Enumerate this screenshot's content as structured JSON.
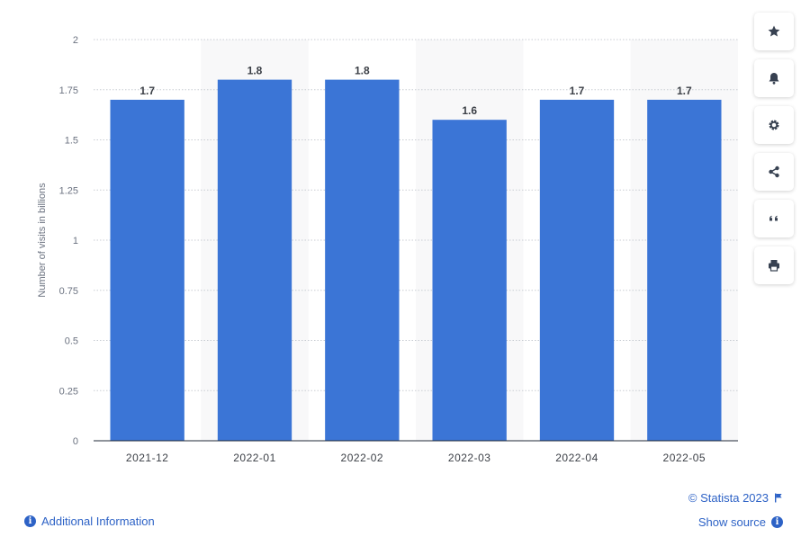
{
  "chart_data": {
    "type": "bar",
    "categories": [
      "2021-12",
      "2022-01",
      "2022-02",
      "2022-03",
      "2022-04",
      "2022-05"
    ],
    "values": [
      1.7,
      1.8,
      1.8,
      1.6,
      1.7,
      1.7
    ],
    "data_labels": [
      "1.7",
      "1.8",
      "1.8",
      "1.6",
      "1.7",
      "1.7"
    ],
    "title": "",
    "xlabel": "",
    "ylabel": "Number of visits in billions",
    "ylim": [
      0,
      2
    ],
    "yticks": [
      "0",
      "0.25",
      "0.5",
      "0.75",
      "1",
      "1.25",
      "1.5",
      "1.75",
      "2"
    ],
    "grid": true,
    "bar_color": "#3b75d6"
  },
  "footer": {
    "copyright": "© Statista 2023",
    "show_source": "Show source",
    "additional_info": "Additional Information"
  },
  "toolbar": {
    "icons": [
      "star-icon",
      "bell-icon",
      "gear-icon",
      "share-icon",
      "quote-icon",
      "print-icon"
    ]
  },
  "colors": {
    "accent": "#2d62c6",
    "bar": "#3b75d6"
  }
}
